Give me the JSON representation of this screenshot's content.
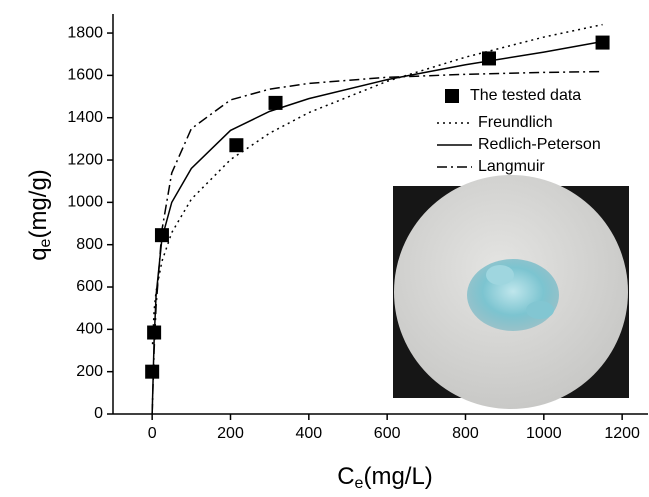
{
  "chart_data": {
    "type": "scatter",
    "xlabel": {
      "main": "C",
      "sub": "e",
      "unit": "(mg/L)"
    },
    "ylabel": {
      "main": "q",
      "sub": "e",
      "unit": "(mg/g)"
    },
    "xlim": [
      -100,
      1266
    ],
    "ylim": [
      0,
      1890
    ],
    "xticks": [
      0,
      200,
      400,
      600,
      800,
      1000,
      1200
    ],
    "yticks": [
      0,
      200,
      400,
      600,
      800,
      1000,
      1200,
      1400,
      1600,
      1800
    ],
    "legend": "upper right",
    "series": [
      {
        "name": "The tested data",
        "type": "scatter",
        "color": "#000000",
        "x": [
          0,
          5,
          25,
          215,
          315,
          860,
          1150
        ],
        "values": [
          200,
          385,
          845,
          1270,
          1470,
          1680,
          1755
        ]
      },
      {
        "name": "Freundlich",
        "type": "line",
        "style": "dotted",
        "color": "#000000",
        "x": [
          1,
          5,
          10,
          25,
          50,
          100,
          200,
          300,
          400,
          600,
          800,
          1000,
          1150
        ],
        "values": [
          330,
          489,
          579,
          722,
          857,
          1015,
          1202,
          1327,
          1424,
          1572,
          1686,
          1781,
          1840
        ]
      },
      {
        "name": "Redlich-Peterson",
        "type": "line",
        "style": "solid",
        "color": "#000000",
        "x": [
          0,
          5,
          10,
          25,
          50,
          100,
          200,
          300,
          400,
          600,
          800,
          1000,
          1150
        ],
        "values": [
          0,
          350,
          560,
          830,
          1000,
          1160,
          1340,
          1430,
          1490,
          1580,
          1650,
          1710,
          1760
        ]
      },
      {
        "name": "Langmuir",
        "type": "line",
        "style": "dashdot",
        "color": "#000000",
        "x": [
          0,
          5,
          10,
          25,
          50,
          100,
          200,
          300,
          400,
          600,
          800,
          1000,
          1150
        ],
        "values": [
          0,
          301,
          509,
          870,
          1139,
          1348,
          1484,
          1535,
          1562,
          1591,
          1605,
          1614,
          1618
        ]
      }
    ]
  }
}
